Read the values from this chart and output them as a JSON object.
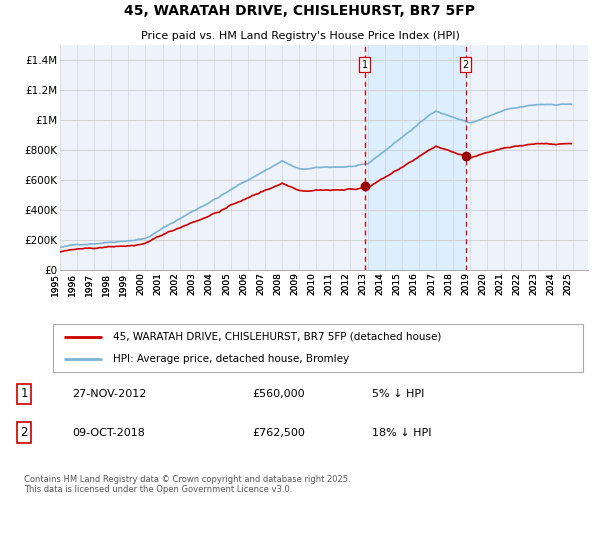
{
  "title": "45, WARATAH DRIVE, CHISLEHURST, BR7 5FP",
  "subtitle": "Price paid vs. HM Land Registry's House Price Index (HPI)",
  "ylabel_ticks": [
    "£0",
    "£200K",
    "£400K",
    "£600K",
    "£800K",
    "£1M",
    "£1.2M",
    "£1.4M"
  ],
  "ylim": [
    0,
    1500000
  ],
  "yticks": [
    0,
    200000,
    400000,
    600000,
    800000,
    1000000,
    1200000,
    1400000
  ],
  "x_start_year": 1995,
  "x_end_year": 2025,
  "hpi_color": "#7ab3d4",
  "price_color": "#cc0000",
  "shade_color": "#ddeeff",
  "vline_color": "#dd0000",
  "marker_color": "#990000",
  "background_color": "#eef3fb",
  "grid_color": "#cccccc",
  "sale1_date": "27-NOV-2012",
  "sale1_price": 560000,
  "sale1_label": "£560,000",
  "sale1_pct": "5% ↓ HPI",
  "sale2_date": "09-OCT-2018",
  "sale2_price": 762500,
  "sale2_label": "£762,500",
  "sale2_pct": "18% ↓ HPI",
  "legend_line1": "45, WARATAH DRIVE, CHISLEHURST, BR7 5FP (detached house)",
  "legend_line2": "HPI: Average price, detached house, Bromley",
  "footnote": "Contains HM Land Registry data © Crown copyright and database right 2025.\nThis data is licensed under the Open Government Licence v3.0.",
  "label1": "1",
  "label2": "2"
}
